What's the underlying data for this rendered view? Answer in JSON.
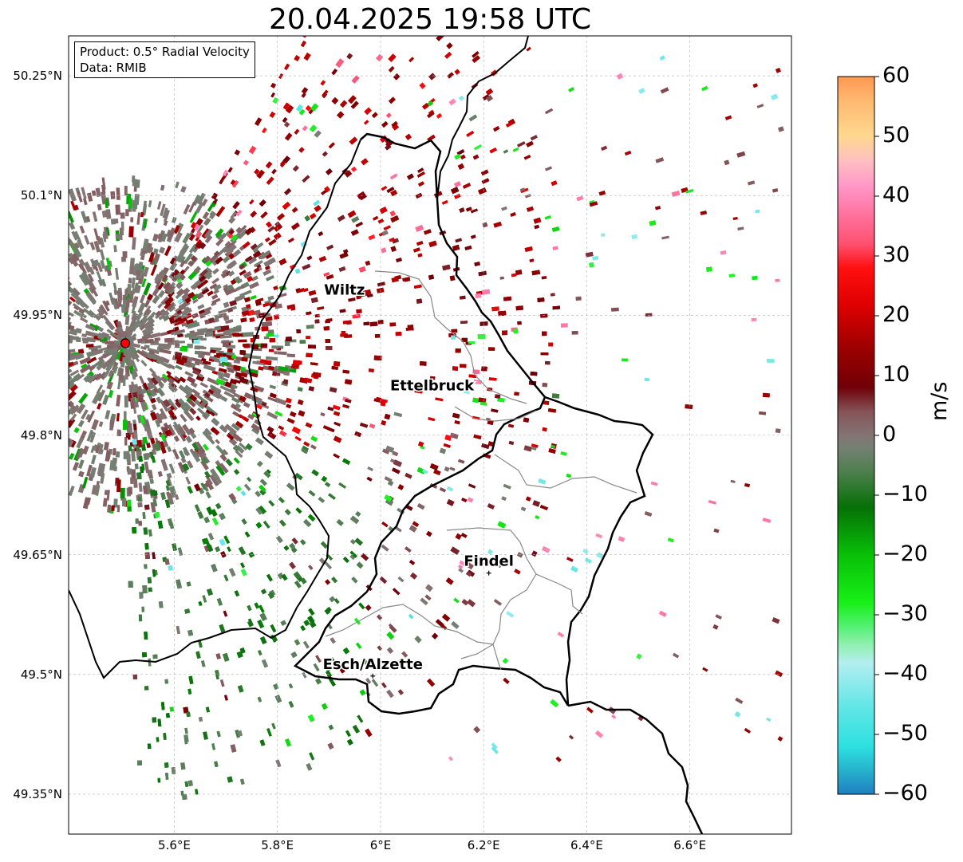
{
  "title": "20.04.2025 19:58 UTC",
  "info_box": {
    "line1": "Product: 0.5° Radial Velocity",
    "line2": "Data: RMIB"
  },
  "map": {
    "lon_range": [
      5.395,
      6.797
    ],
    "lat_range": [
      49.3,
      50.3
    ],
    "lon_ticks": [
      {
        "value": 5.6,
        "label": "5.6°E"
      },
      {
        "value": 5.8,
        "label": "5.8°E"
      },
      {
        "value": 6.0,
        "label": "6°E"
      },
      {
        "value": 6.2,
        "label": "6.2°E"
      },
      {
        "value": 6.4,
        "label": "6.4°E"
      },
      {
        "value": 6.6,
        "label": "6.6°E"
      }
    ],
    "lat_ticks": [
      {
        "value": 50.25,
        "label": "50.25°N"
      },
      {
        "value": 50.1,
        "label": "50.1°N"
      },
      {
        "value": 49.95,
        "label": "49.95°N"
      },
      {
        "value": 49.8,
        "label": "49.8°N"
      },
      {
        "value": 49.65,
        "label": "49.65°N"
      },
      {
        "value": 49.5,
        "label": "49.5°N"
      },
      {
        "value": 49.35,
        "label": "49.35°N"
      }
    ],
    "radar_site": {
      "lon": 5.505,
      "lat": 49.915,
      "color": "#ff0000"
    },
    "cities": [
      {
        "name": "Wiltz",
        "lon": 5.93,
        "lat": 49.967,
        "marker": false
      },
      {
        "name": "Ettelbruck",
        "lon": 6.1,
        "lat": 49.847,
        "marker": false
      },
      {
        "name": "Findel",
        "lon": 6.21,
        "lat": 49.627,
        "marker": true
      },
      {
        "name": "Esch/Alzette",
        "lon": 5.985,
        "lat": 49.498,
        "marker": true
      }
    ]
  },
  "colorbar": {
    "unit": "m/s",
    "min": -60,
    "max": 60,
    "ticks": [
      {
        "value": 60,
        "label": "60"
      },
      {
        "value": 50,
        "label": "50"
      },
      {
        "value": 40,
        "label": "40"
      },
      {
        "value": 30,
        "label": "30"
      },
      {
        "value": 20,
        "label": "20"
      },
      {
        "value": 10,
        "label": "10"
      },
      {
        "value": 0,
        "label": "0"
      },
      {
        "value": -10,
        "label": "−10"
      },
      {
        "value": -20,
        "label": "−20"
      },
      {
        "value": -30,
        "label": "−30"
      },
      {
        "value": -40,
        "label": "−40"
      },
      {
        "value": -50,
        "label": "−50"
      },
      {
        "value": -60,
        "label": "−60"
      }
    ],
    "stops": [
      {
        "value": -60,
        "color": "#1f7fc0"
      },
      {
        "value": -56,
        "color": "#26b2cc"
      },
      {
        "value": -52,
        "color": "#2ee0e0"
      },
      {
        "value": -45,
        "color": "#66e6e6"
      },
      {
        "value": -38,
        "color": "#b4eef0"
      },
      {
        "value": -35,
        "color": "#90f0b0"
      },
      {
        "value": -32,
        "color": "#55f075"
      },
      {
        "value": -28,
        "color": "#18f018"
      },
      {
        "value": -20,
        "color": "#08c008"
      },
      {
        "value": -12,
        "color": "#067006"
      },
      {
        "value": -6,
        "color": "#4f7f4f"
      },
      {
        "value": -2,
        "color": "#748074"
      },
      {
        "value": 0,
        "color": "#847474"
      },
      {
        "value": 4,
        "color": "#845358"
      },
      {
        "value": 8,
        "color": "#700008"
      },
      {
        "value": 14,
        "color": "#980000"
      },
      {
        "value": 22,
        "color": "#e00000"
      },
      {
        "value": 28,
        "color": "#ff1010"
      },
      {
        "value": 32,
        "color": "#ff5070"
      },
      {
        "value": 38,
        "color": "#ff7aa8"
      },
      {
        "value": 42,
        "color": "#ff9ac8"
      },
      {
        "value": 46,
        "color": "#ffc0c0"
      },
      {
        "value": 50,
        "color": "#ffd890"
      },
      {
        "value": 56,
        "color": "#ffb870"
      },
      {
        "value": 60,
        "color": "#ff9850"
      }
    ]
  }
}
